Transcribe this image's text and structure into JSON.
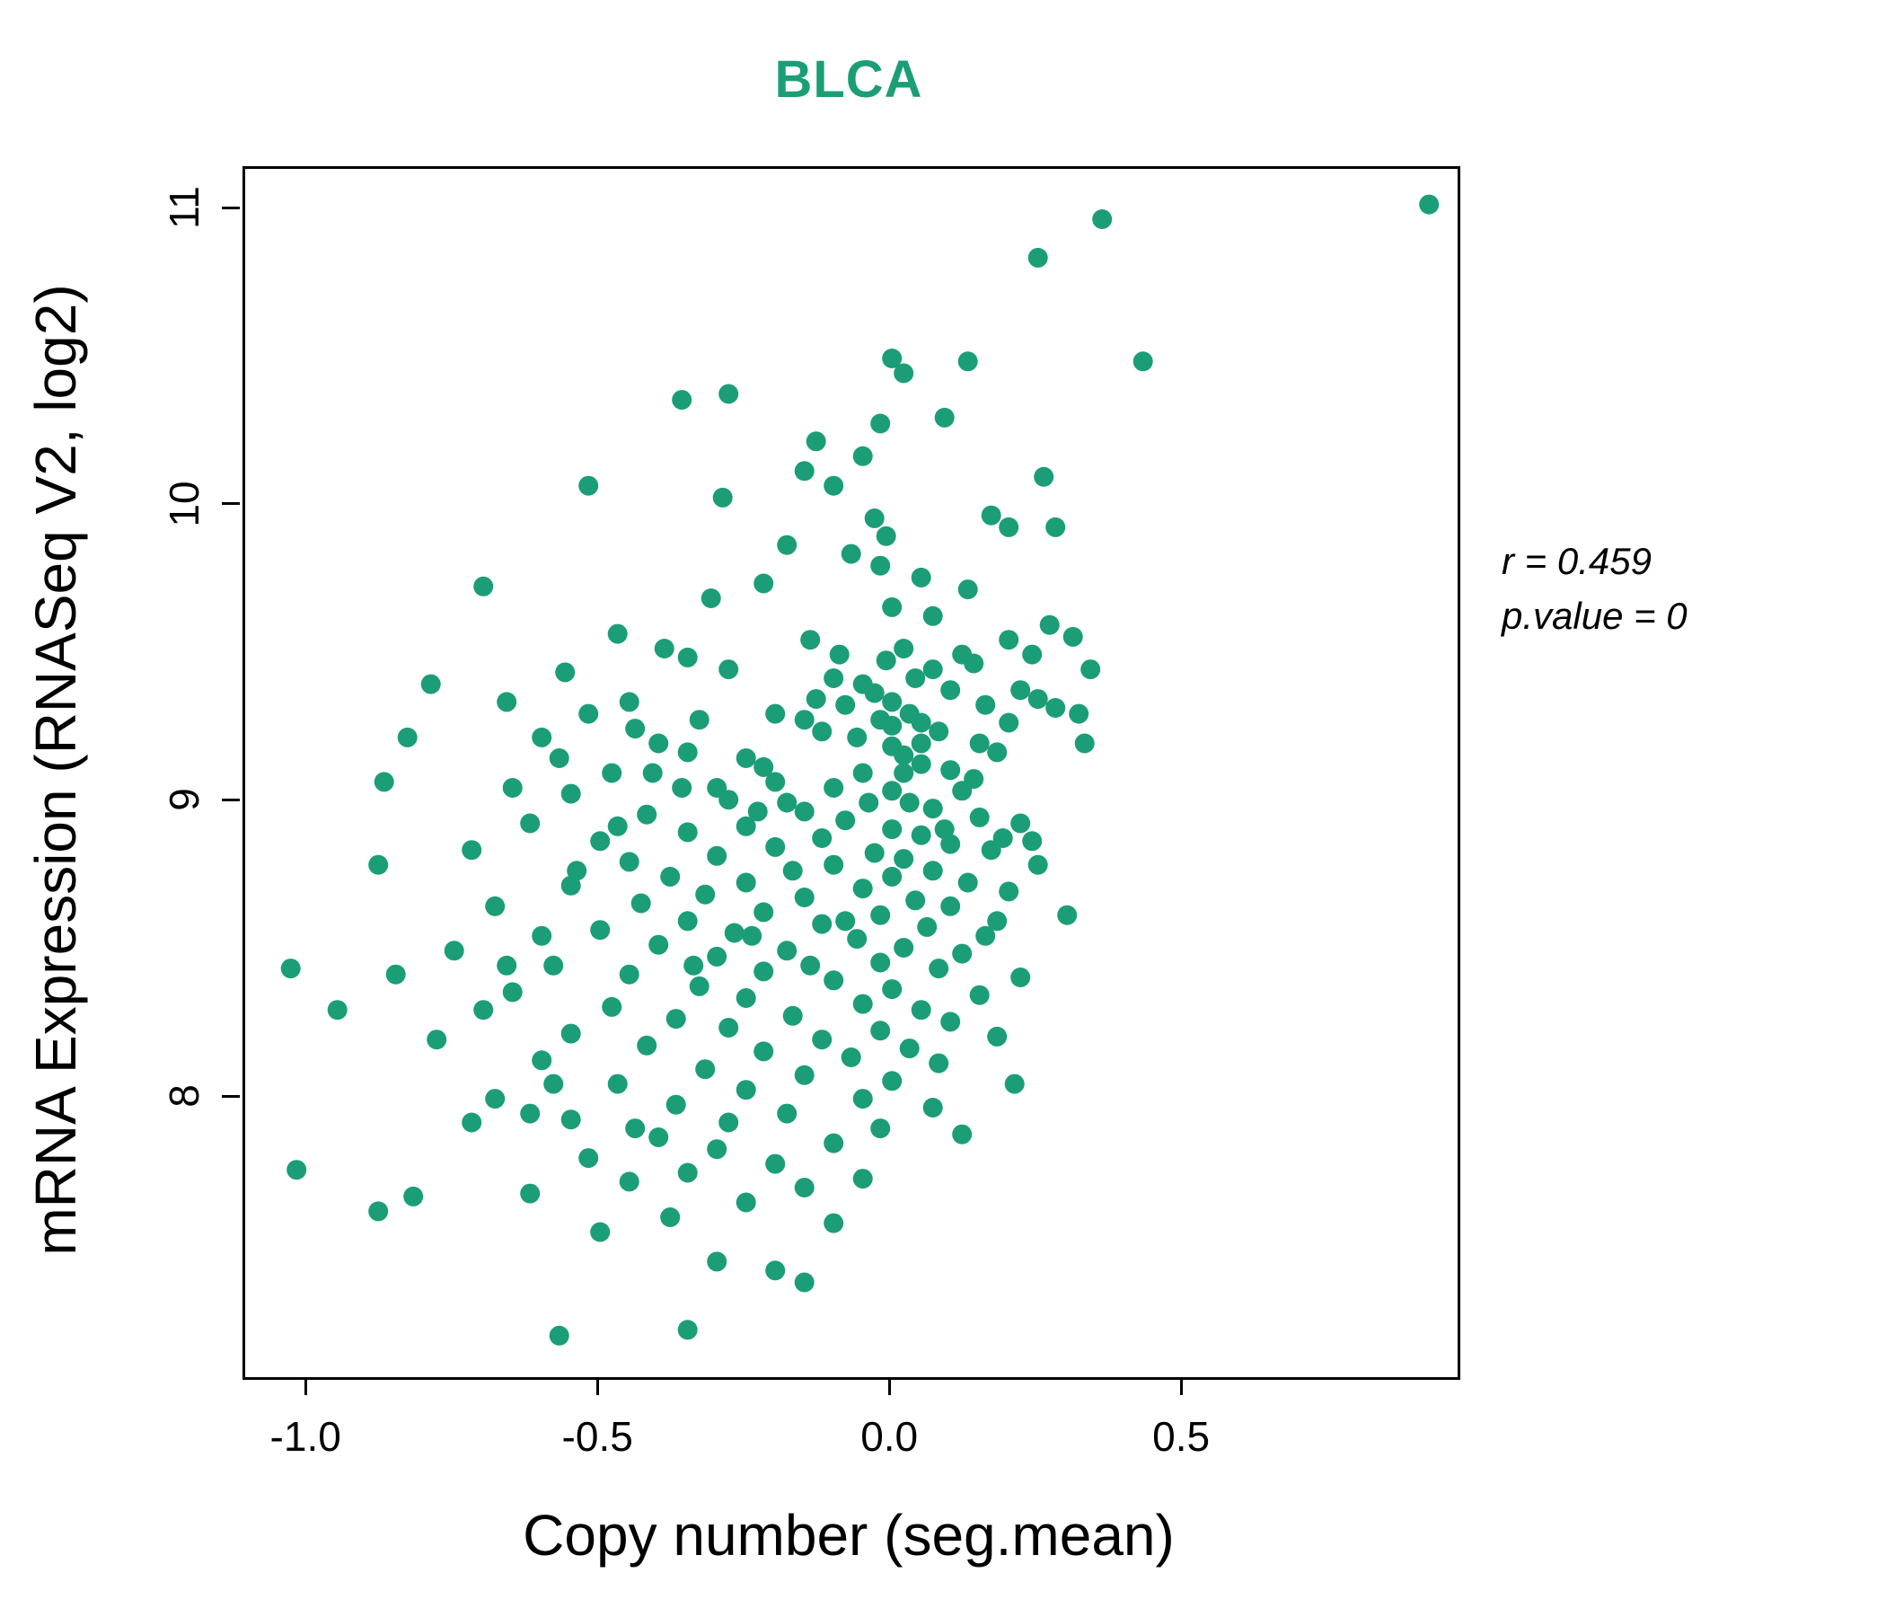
{
  "title": "BLCA",
  "colors": {
    "accent": "#1B9E77",
    "point": "#1B9E77",
    "axis": "#000000"
  },
  "annotation": {
    "line1": "r = 0.459",
    "line2": "p.value = 0"
  },
  "chart_data": {
    "type": "scatter",
    "title": "BLCA",
    "xlabel": "Copy number (seg.mean)",
    "ylabel": "mRNA Expression (RNASeq V2, log2)",
    "xlim": [
      -1.108,
      0.969
    ],
    "ylim": [
      7.06,
      11.14
    ],
    "grid": false,
    "legend": "none",
    "stats": {
      "r": 0.459,
      "p_value": 0
    },
    "xticks": [
      {
        "label": "-1.0",
        "value": -1.0
      },
      {
        "label": "-0.5",
        "value": -0.5
      },
      {
        "label": "0.0",
        "value": 0.0
      },
      {
        "label": "0.5",
        "value": 0.5
      }
    ],
    "yticks": [
      {
        "label": "8",
        "value": 8
      },
      {
        "label": "9",
        "value": 9
      },
      {
        "label": "10",
        "value": 10
      },
      {
        "label": "11",
        "value": 11
      }
    ],
    "point_radius": 11,
    "points": [
      [
        0.92,
        11.02
      ],
      [
        0.36,
        10.97
      ],
      [
        0.25,
        10.84
      ],
      [
        0.43,
        10.49
      ],
      [
        0.13,
        10.49
      ],
      [
        0.0,
        10.5
      ],
      [
        0.02,
        10.45
      ],
      [
        -0.28,
        10.38
      ],
      [
        -0.36,
        10.36
      ],
      [
        0.09,
        10.3
      ],
      [
        -0.02,
        10.28
      ],
      [
        -0.13,
        10.22
      ],
      [
        -0.05,
        10.17
      ],
      [
        0.26,
        10.1
      ],
      [
        -0.15,
        10.12
      ],
      [
        -0.1,
        10.07
      ],
      [
        -0.52,
        10.07
      ],
      [
        -0.29,
        10.03
      ],
      [
        0.17,
        9.97
      ],
      [
        0.2,
        9.93
      ],
      [
        -0.03,
        9.96
      ],
      [
        -0.01,
        9.9
      ],
      [
        0.28,
        9.93
      ],
      [
        -0.18,
        9.87
      ],
      [
        -0.07,
        9.84
      ],
      [
        -0.02,
        9.8
      ],
      [
        0.05,
        9.76
      ],
      [
        -0.22,
        9.74
      ],
      [
        -0.7,
        9.73
      ],
      [
        0.13,
        9.72
      ],
      [
        -0.31,
        9.69
      ],
      [
        0.0,
        9.66
      ],
      [
        0.07,
        9.63
      ],
      [
        0.27,
        9.6
      ],
      [
        0.31,
        9.56
      ],
      [
        -0.47,
        9.57
      ],
      [
        -0.14,
        9.55
      ],
      [
        -0.39,
        9.52
      ],
      [
        0.02,
        9.52
      ],
      [
        0.12,
        9.5
      ],
      [
        -0.35,
        9.49
      ],
      [
        0.14,
        9.47
      ],
      [
        -0.28,
        9.45
      ],
      [
        -0.56,
        9.44
      ],
      [
        -0.79,
        9.4
      ],
      [
        -0.1,
        9.42
      ],
      [
        -0.05,
        9.4
      ],
      [
        0.22,
        9.38
      ],
      [
        -0.03,
        9.37
      ],
      [
        0.25,
        9.35
      ],
      [
        -0.66,
        9.34
      ],
      [
        -0.45,
        9.34
      ],
      [
        0.0,
        9.34
      ],
      [
        0.28,
        9.32
      ],
      [
        -0.2,
        9.3
      ],
      [
        0.03,
        9.3
      ],
      [
        0.32,
        9.3
      ],
      [
        -0.15,
        9.28
      ],
      [
        0.05,
        9.27
      ],
      [
        -0.83,
        9.22
      ],
      [
        -0.6,
        9.22
      ],
      [
        -0.12,
        9.24
      ],
      [
        0.08,
        9.24
      ],
      [
        0.15,
        9.2
      ],
      [
        -0.4,
        9.2
      ],
      [
        0.0,
        9.19
      ],
      [
        -0.35,
        9.17
      ],
      [
        0.18,
        9.17
      ],
      [
        0.02,
        9.16
      ],
      [
        -0.25,
        9.15
      ],
      [
        0.33,
        9.2
      ],
      [
        0.05,
        9.13
      ],
      [
        -0.22,
        9.12
      ],
      [
        0.1,
        9.11
      ],
      [
        -0.05,
        9.1
      ],
      [
        -0.48,
        9.1
      ],
      [
        -0.87,
        9.07
      ],
      [
        -0.65,
        9.05
      ],
      [
        -0.3,
        9.05
      ],
      [
        0.0,
        9.04
      ],
      [
        0.12,
        9.04
      ],
      [
        -0.55,
        9.03
      ],
      [
        -0.28,
        9.01
      ],
      [
        0.03,
        9.0
      ],
      [
        -0.18,
        9.0
      ],
      [
        0.07,
        8.98
      ],
      [
        -0.15,
        8.97
      ],
      [
        -0.42,
        8.96
      ],
      [
        0.15,
        8.95
      ],
      [
        -0.08,
        8.94
      ],
      [
        -0.62,
        8.93
      ],
      [
        0.22,
        8.93
      ],
      [
        -0.25,
        8.92
      ],
      [
        0.0,
        8.91
      ],
      [
        -0.35,
        8.9
      ],
      [
        0.05,
        8.89
      ],
      [
        -0.12,
        8.88
      ],
      [
        -0.5,
        8.87
      ],
      [
        0.1,
        8.86
      ],
      [
        -0.2,
        8.85
      ],
      [
        -0.72,
        8.84
      ],
      [
        0.17,
        8.84
      ],
      [
        -0.03,
        8.83
      ],
      [
        -0.3,
        8.82
      ],
      [
        0.02,
        8.81
      ],
      [
        -0.45,
        8.8
      ],
      [
        -0.1,
        8.79
      ],
      [
        0.25,
        8.79
      ],
      [
        -0.88,
        8.79
      ],
      [
        -0.17,
        8.77
      ],
      [
        0.07,
        8.77
      ],
      [
        -0.38,
        8.75
      ],
      [
        0.0,
        8.75
      ],
      [
        -0.25,
        8.73
      ],
      [
        0.13,
        8.73
      ],
      [
        -0.55,
        8.72
      ],
      [
        -0.05,
        8.71
      ],
      [
        0.2,
        8.7
      ],
      [
        -0.32,
        8.69
      ],
      [
        -0.15,
        8.68
      ],
      [
        0.04,
        8.67
      ],
      [
        -0.43,
        8.66
      ],
      [
        -0.68,
        8.65
      ],
      [
        0.1,
        8.65
      ],
      [
        -0.22,
        8.63
      ],
      [
        -0.02,
        8.62
      ],
      [
        0.3,
        8.62
      ],
      [
        -0.35,
        8.6
      ],
      [
        -0.12,
        8.59
      ],
      [
        0.06,
        8.58
      ],
      [
        -0.5,
        8.57
      ],
      [
        -0.27,
        8.56
      ],
      [
        0.16,
        8.55
      ],
      [
        -0.06,
        8.54
      ],
      [
        -0.4,
        8.52
      ],
      [
        0.02,
        8.51
      ],
      [
        -0.18,
        8.5
      ],
      [
        -0.75,
        8.5
      ],
      [
        0.12,
        8.49
      ],
      [
        -0.3,
        8.48
      ],
      [
        -0.02,
        8.46
      ],
      [
        -0.58,
        8.45
      ],
      [
        0.08,
        8.44
      ],
      [
        -0.22,
        8.43
      ],
      [
        -0.45,
        8.42
      ],
      [
        0.22,
        8.41
      ],
      [
        -0.1,
        8.4
      ],
      [
        -0.33,
        8.38
      ],
      [
        0.0,
        8.37
      ],
      [
        -0.65,
        8.36
      ],
      [
        0.15,
        8.35
      ],
      [
        -0.25,
        8.34
      ],
      [
        -0.05,
        8.32
      ],
      [
        -0.48,
        8.31
      ],
      [
        -0.85,
        8.42
      ],
      [
        -1.03,
        8.44
      ],
      [
        -0.95,
        8.3
      ],
      [
        0.05,
        8.3
      ],
      [
        -0.17,
        8.28
      ],
      [
        -0.37,
        8.27
      ],
      [
        0.1,
        8.26
      ],
      [
        -0.28,
        8.24
      ],
      [
        -0.02,
        8.23
      ],
      [
        -0.55,
        8.22
      ],
      [
        0.18,
        8.21
      ],
      [
        -0.12,
        8.2
      ],
      [
        -0.42,
        8.18
      ],
      [
        0.03,
        8.17
      ],
      [
        -0.22,
        8.16
      ],
      [
        -0.07,
        8.14
      ],
      [
        -0.6,
        8.13
      ],
      [
        0.08,
        8.12
      ],
      [
        -0.32,
        8.1
      ],
      [
        -0.15,
        8.08
      ],
      [
        0.0,
        8.06
      ],
      [
        0.21,
        8.05
      ],
      [
        -0.47,
        8.05
      ],
      [
        -0.25,
        8.03
      ],
      [
        -0.68,
        8.0
      ],
      [
        -0.05,
        8.0
      ],
      [
        -0.37,
        7.98
      ],
      [
        0.07,
        7.97
      ],
      [
        -0.18,
        7.95
      ],
      [
        -0.55,
        7.93
      ],
      [
        -0.28,
        7.92
      ],
      [
        -0.02,
        7.9
      ],
      [
        -0.62,
        7.95
      ],
      [
        -0.72,
        7.92
      ],
      [
        0.12,
        7.88
      ],
      [
        -0.4,
        7.87
      ],
      [
        -0.1,
        7.85
      ],
      [
        -0.3,
        7.83
      ],
      [
        -0.52,
        7.8
      ],
      [
        -0.2,
        7.78
      ],
      [
        -1.02,
        7.76
      ],
      [
        -0.35,
        7.75
      ],
      [
        -0.05,
        7.73
      ],
      [
        -0.45,
        7.72
      ],
      [
        -0.15,
        7.7
      ],
      [
        -0.62,
        7.68
      ],
      [
        -0.82,
        7.67
      ],
      [
        -0.25,
        7.65
      ],
      [
        -0.88,
        7.62
      ],
      [
        -0.38,
        7.6
      ],
      [
        -0.1,
        7.58
      ],
      [
        -0.5,
        7.55
      ],
      [
        -0.3,
        7.45
      ],
      [
        -0.2,
        7.42
      ],
      [
        -0.15,
        7.38
      ],
      [
        -0.35,
        7.22
      ],
      [
        -0.57,
        7.2
      ],
      [
        0.34,
        9.45
      ],
      [
        0.2,
        9.55
      ],
      [
        0.24,
        9.5
      ],
      [
        0.19,
        8.88
      ],
      [
        -0.08,
        9.33
      ],
      [
        -0.13,
        9.35
      ],
      [
        0.04,
        9.42
      ],
      [
        -0.02,
        9.28
      ],
      [
        0.0,
        9.26
      ],
      [
        -0.06,
        9.22
      ],
      [
        0.02,
        9.1
      ],
      [
        -0.1,
        9.05
      ],
      [
        0.05,
        9.2
      ],
      [
        -0.04,
        9.0
      ],
      [
        -0.33,
        9.28
      ],
      [
        -0.44,
        9.25
      ],
      [
        -0.52,
        9.3
      ],
      [
        -0.36,
        9.05
      ],
      [
        -0.41,
        9.1
      ],
      [
        -0.57,
        9.15
      ],
      [
        -0.23,
        8.97
      ],
      [
        -0.2,
        9.07
      ],
      [
        0.09,
        8.91
      ],
      [
        0.14,
        9.08
      ],
      [
        -0.47,
        8.92
      ],
      [
        -0.54,
        8.77
      ],
      [
        -0.6,
        8.55
      ],
      [
        -0.66,
        8.45
      ],
      [
        -0.7,
        8.3
      ],
      [
        -0.78,
        8.2
      ],
      [
        -0.58,
        8.05
      ],
      [
        -0.44,
        7.9
      ],
      [
        -0.24,
        8.55
      ],
      [
        -0.14,
        8.45
      ],
      [
        -0.34,
        8.45
      ],
      [
        -0.08,
        8.6
      ],
      [
        0.18,
        8.6
      ],
      [
        0.24,
        8.87
      ],
      [
        0.2,
        9.27
      ],
      [
        0.16,
        9.33
      ],
      [
        0.1,
        9.38
      ],
      [
        0.07,
        9.45
      ],
      [
        -0.01,
        9.48
      ],
      [
        -0.09,
        9.5
      ]
    ]
  }
}
